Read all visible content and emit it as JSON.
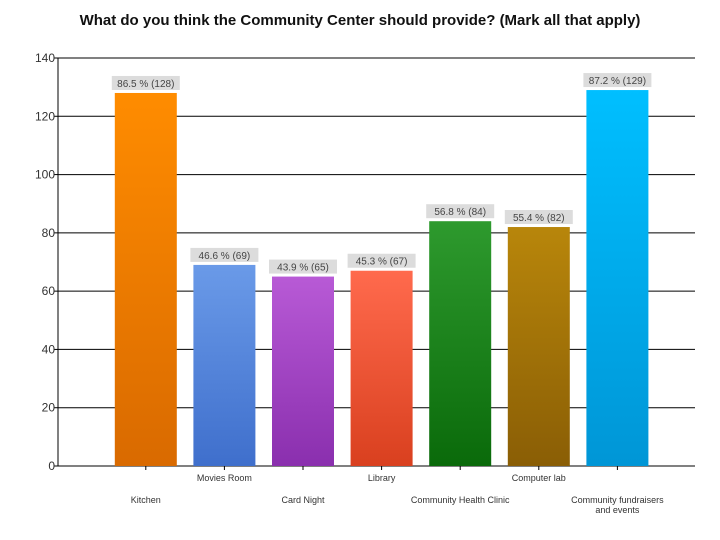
{
  "chart_data": {
    "type": "bar",
    "title": "What do you think the Community Center should provide?  (Mark all that apply)",
    "xlabel": "",
    "ylabel": "",
    "ylim": [
      0,
      140
    ],
    "yticks": [
      0,
      20,
      40,
      60,
      80,
      100,
      120,
      140
    ],
    "grid": true,
    "categories": [
      {
        "label": "Kitchen",
        "row": 2
      },
      {
        "label": "Movies Room",
        "row": 1
      },
      {
        "label": "Card Night",
        "row": 2
      },
      {
        "label": "Library",
        "row": 1
      },
      {
        "label": "Community Health Clinic",
        "row": 2
      },
      {
        "label": "Computer lab",
        "row": 1
      },
      {
        "label": "Community fundraisers and events",
        "row": 2,
        "lines": [
          "Community fundraisers",
          "and events"
        ]
      }
    ],
    "values": [
      128,
      69,
      65,
      67,
      84,
      82,
      129
    ],
    "data_labels": [
      "86.5 % (128)",
      "46.6 % (69)",
      "43.9 % (65)",
      "45.3 % (67)",
      "56.8 % (84)",
      "55.4 % (82)",
      "87.2 % (129)"
    ],
    "colors": [
      [
        "#ff8c00",
        "#d96a00"
      ],
      [
        "#6a9ae8",
        "#3f6fcc"
      ],
      [
        "#b85ad6",
        "#8a2fae"
      ],
      [
        "#ff6a4d",
        "#d9401f"
      ],
      [
        "#2e9a2e",
        "#0a6a0a"
      ],
      [
        "#b8860b",
        "#8a5e05"
      ],
      [
        "#00bfff",
        "#0096d6"
      ]
    ]
  }
}
